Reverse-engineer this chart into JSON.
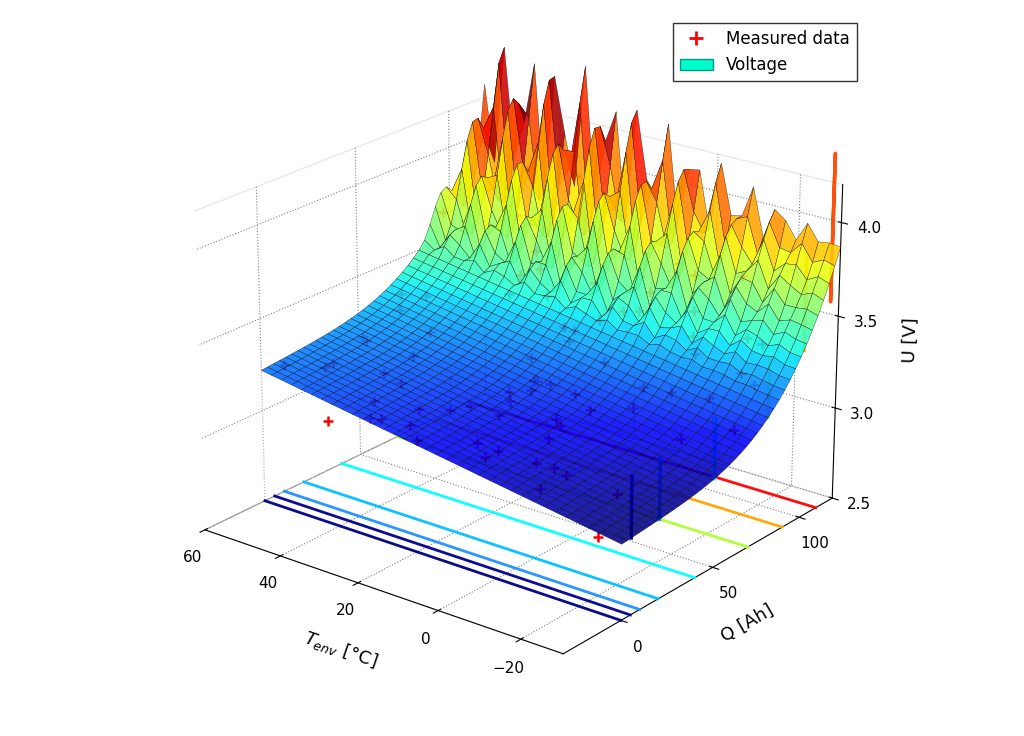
{
  "title": "",
  "xlabel": "$T_{env}$ [°C]",
  "ylabel": "Q [Ah]",
  "zlabel": "U [V]",
  "T_range": [
    -30,
    60
  ],
  "Q_range": [
    -30,
    120
  ],
  "U_range": [
    2.5,
    4.2
  ],
  "T_ticks": [
    60,
    40,
    20,
    0,
    -20
  ],
  "Q_ticks": [
    0,
    50,
    100
  ],
  "U_ticks": [
    2.5,
    3.0,
    3.5,
    4.0
  ],
  "legend_items": [
    "Measured data",
    "Voltage"
  ],
  "legend_marker_color": "red",
  "legend_patch_color": "#00ffcc",
  "background_color": "#ffffff",
  "surface_cmap": "jet",
  "n_T": 35,
  "n_Q": 40,
  "n_measured": 80,
  "floor_Q_vals": [
    0,
    5,
    10,
    20,
    40,
    70,
    90,
    110
  ],
  "floor_colors": [
    "#000080",
    "#00008b",
    "#1e90ff",
    "#00bfff",
    "#00ffff",
    "#adff2f",
    "#ffa500",
    "#ff0000"
  ],
  "curve_Q_vals": [
    5,
    20,
    50,
    80,
    100,
    115
  ],
  "curve_colors": [
    "#00008b",
    "#1e90ff",
    "#00ffff",
    "#adff2f",
    "#ffa500",
    "#ff4500"
  ]
}
